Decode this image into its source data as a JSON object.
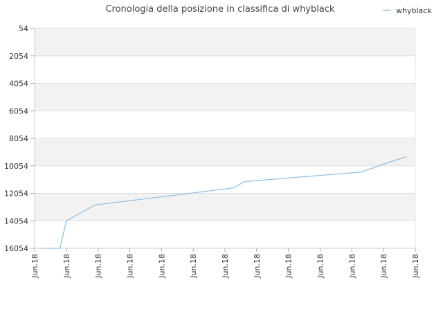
{
  "chart_data": {
    "type": "line",
    "title": "Cronologia della posizione in classifica di whyblack",
    "xlabel": "",
    "ylabel": "",
    "ylim": [
      54,
      16054
    ],
    "y_inverted": true,
    "y_ticks": [
      "54",
      "2054",
      "4054",
      "6054",
      "8054",
      "10054",
      "12054",
      "14054",
      "16054"
    ],
    "x_ticks": [
      "Jun.18",
      "Jun.18",
      "Jun.18",
      "Jun.18",
      "Jun.18",
      "Jun.18",
      "Jun.18",
      "Jun.18",
      "Jun.18",
      "Jun.18",
      "Jun.18",
      "Jun.18",
      "Jun.18"
    ],
    "grid": "horizontal-bands",
    "legend": "top-right",
    "series": [
      {
        "name": "whyblack",
        "color": "#8ec1ea",
        "x": [
          0.2,
          0.8,
          1.0,
          1.9,
          6.3,
          6.6,
          10.3,
          11.1,
          11.7
        ],
        "y": [
          16054,
          16054,
          14054,
          12904,
          11654,
          11204,
          10504,
          9854,
          9404
        ]
      }
    ]
  }
}
